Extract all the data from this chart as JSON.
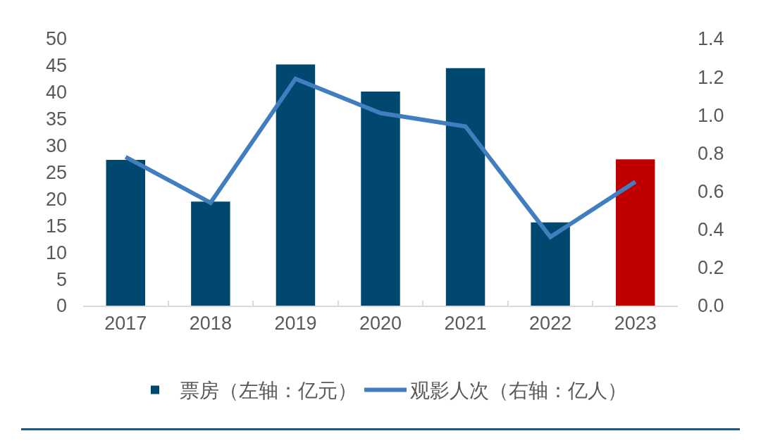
{
  "chart_data": {
    "type": "bar",
    "categories": [
      "2017",
      "2018",
      "2019",
      "2020",
      "2021",
      "2022",
      "2023"
    ],
    "series": [
      {
        "name": "票房（左轴：亿元）",
        "colors": [
          "#004870",
          "#004870",
          "#004870",
          "#004870",
          "#004870",
          "#004870",
          "#c00000"
        ],
        "values": [
          27.3,
          19.5,
          45.2,
          40.1,
          44.5,
          15.6,
          27.4
        ]
      },
      {
        "name": "观影人次（右轴：亿人）",
        "type": "line",
        "axis": "y2",
        "color": "#417ec0",
        "values": [
          0.78,
          0.54,
          1.19,
          1.01,
          0.94,
          0.36,
          0.65
        ]
      }
    ],
    "ylim": [
      0,
      50
    ],
    "yticks": [
      0,
      5,
      10,
      15,
      20,
      25,
      30,
      35,
      40,
      45,
      50
    ],
    "y2lim": [
      0,
      1.4
    ],
    "y2ticks": [
      {
        "value": 0,
        "label": "0.0"
      },
      0.2,
      0.4,
      0.6,
      0.8,
      {
        "value": 1,
        "label": "1.0"
      },
      1.2,
      1.4
    ],
    "grid": false,
    "legend": "bottom",
    "marker": "none",
    "line_style": "solid"
  }
}
